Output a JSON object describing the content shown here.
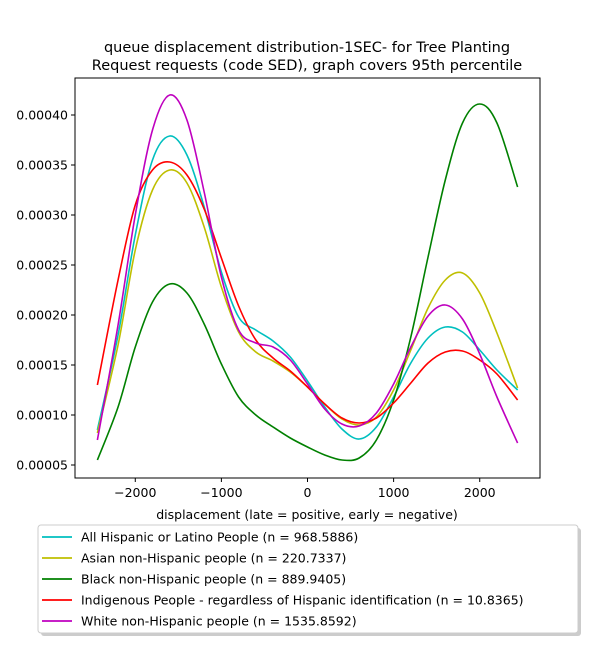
{
  "chart_data": {
    "type": "line",
    "title": [
      "queue displacement distribution-1SEC-  for Tree Planting",
      "Request  requests (code SED), graph covers 95th percentile"
    ],
    "xlabel": "displacement (late = positive, early = negative)",
    "ylabel": "",
    "xlim": [
      -2700,
      2700
    ],
    "ylim": [
      3.7e-05,
      0.000437
    ],
    "xticks": [
      -2000,
      -1000,
      0,
      1000,
      2000
    ],
    "xtick_labels": [
      "−2000",
      "−1000",
      "0",
      "1000",
      "2000"
    ],
    "yticks": [
      5e-05,
      0.0001,
      0.00015,
      0.0002,
      0.00025,
      0.0003,
      0.00035,
      0.0004
    ],
    "ytick_labels": [
      "0.00005",
      "0.00010",
      "0.00015",
      "0.00020",
      "0.00025",
      "0.00030",
      "0.00035",
      "0.00040"
    ],
    "grid": false,
    "legend_position": "below",
    "series": [
      {
        "name": "All Hispanic or Latino People (n = 968.5886)",
        "color": "#00bfbf",
        "x": [
          -2440,
          -2200,
          -2000,
          -1800,
          -1600,
          -1400,
          -1200,
          -1000,
          -800,
          -600,
          -400,
          -200,
          0,
          200,
          400,
          600,
          800,
          1000,
          1200,
          1400,
          1600,
          1800,
          2000,
          2200,
          2440
        ],
        "y": [
          8.5e-05,
          0.00018,
          0.00028,
          0.000355,
          0.000379,
          0.00036,
          0.000308,
          0.000243,
          0.000198,
          0.000185,
          0.000174,
          0.000158,
          0.000134,
          0.000108,
          8.6e-05,
          7.6e-05,
          8.8e-05,
          0.000118,
          0.000152,
          0.000177,
          0.000188,
          0.000183,
          0.000165,
          0.000145,
          0.000125
        ]
      },
      {
        "name": "Asian non-Hispanic people (n = 220.7337)",
        "color": "#bfbf00",
        "x": [
          -2440,
          -2200,
          -2000,
          -1800,
          -1600,
          -1400,
          -1200,
          -1000,
          -800,
          -600,
          -400,
          -200,
          0,
          200,
          400,
          600,
          800,
          1000,
          1200,
          1400,
          1600,
          1800,
          2000,
          2200,
          2440
        ],
        "y": [
          8.2e-05,
          0.00017,
          0.000265,
          0.000325,
          0.000345,
          0.000332,
          0.000288,
          0.000228,
          0.000183,
          0.000163,
          0.000154,
          0.000143,
          0.000128,
          0.000111,
          9.6e-05,
          9e-05,
          9.8e-05,
          0.000125,
          0.000165,
          0.000207,
          0.000235,
          0.000242,
          0.000222,
          0.000182,
          0.000127
        ]
      },
      {
        "name": "Black non-Hispanic people (n = 889.9405)",
        "color": "#008000",
        "x": [
          -2440,
          -2200,
          -2000,
          -1800,
          -1600,
          -1400,
          -1200,
          -1000,
          -800,
          -600,
          -400,
          -200,
          0,
          200,
          400,
          600,
          800,
          1000,
          1200,
          1400,
          1600,
          1800,
          2000,
          2200,
          2440
        ],
        "y": [
          5.5e-05,
          0.000108,
          0.000168,
          0.000213,
          0.000231,
          0.000222,
          0.000191,
          0.000151,
          0.000118,
          0.0001,
          8.8e-05,
          7.7e-05,
          6.8e-05,
          6e-05,
          5.5e-05,
          5.7e-05,
          7.5e-05,
          0.000115,
          0.000178,
          0.000258,
          0.000335,
          0.000392,
          0.000411,
          0.000392,
          0.000328
        ]
      },
      {
        "name": "Indigenous People - regardless of Hispanic identification (n = 10.8365)",
        "color": "#ff0000",
        "x": [
          -2440,
          -2200,
          -2000,
          -1800,
          -1600,
          -1400,
          -1200,
          -1000,
          -800,
          -600,
          -400,
          -200,
          0,
          200,
          400,
          600,
          800,
          1000,
          1200,
          1400,
          1600,
          1800,
          2000,
          2200,
          2440
        ],
        "y": [
          0.00013,
          0.000235,
          0.00031,
          0.000345,
          0.000353,
          0.00034,
          0.000306,
          0.000257,
          0.000209,
          0.000175,
          0.000157,
          0.000144,
          0.000128,
          0.000111,
          9.7e-05,
          9.2e-05,
          9.7e-05,
          0.000112,
          0.000132,
          0.000152,
          0.000163,
          0.000164,
          0.000155,
          0.000141,
          0.000115
        ]
      },
      {
        "name": "White non-Hispanic people (n = 1535.8592)",
        "color": "#bf00bf",
        "x": [
          -2440,
          -2200,
          -2000,
          -1800,
          -1600,
          -1400,
          -1200,
          -1000,
          -800,
          -600,
          -400,
          -200,
          0,
          200,
          400,
          600,
          800,
          1000,
          1200,
          1400,
          1600,
          1800,
          2000,
          2200,
          2440
        ],
        "y": [
          7.5e-05,
          0.00019,
          0.0003,
          0.000385,
          0.00042,
          0.000395,
          0.000323,
          0.000238,
          0.000185,
          0.000172,
          0.000168,
          0.000155,
          0.000131,
          0.000106,
          9.1e-05,
          8.9e-05,
          0.000102,
          0.000131,
          0.000168,
          0.000199,
          0.00021,
          0.000196,
          0.000161,
          0.000118,
          7.2e-05
        ]
      }
    ]
  }
}
